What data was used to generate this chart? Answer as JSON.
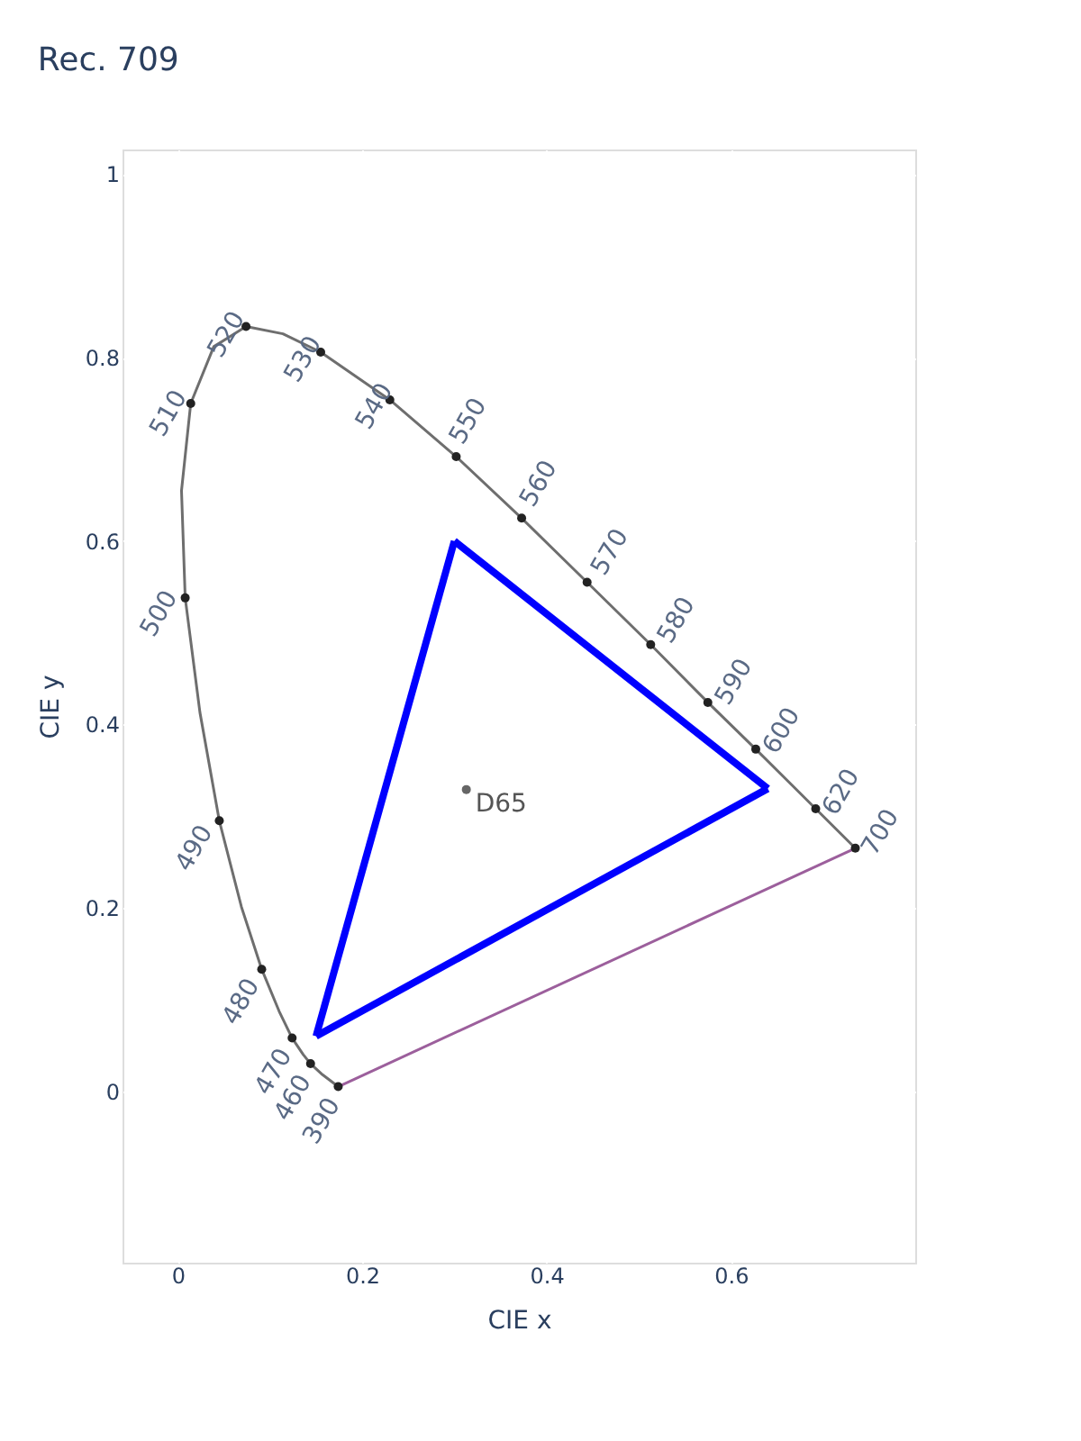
{
  "chart_data": {
    "type": "line",
    "title": "Rec. 709",
    "xlabel": "CIE x",
    "ylabel": "CIE y",
    "xlim": [
      -0.06,
      0.8
    ],
    "ylim": [
      -0.187,
      1.027
    ],
    "xticks": [
      0,
      0.2,
      0.4,
      0.6
    ],
    "yticks": [
      0,
      0.2,
      0.4,
      0.6,
      0.8,
      1
    ],
    "grid": true,
    "series": [
      {
        "color": "#6e6e6e",
        "marker": "none",
        "x": [
          0.174,
          0.157,
          0.144,
          0.136,
          0.124,
          0.11,
          0.091,
          0.069,
          0.045,
          0.024,
          0.008,
          0.004,
          0.014,
          0.039,
          0.074,
          0.114,
          0.155,
          0.23,
          0.302,
          0.373,
          0.444,
          0.513,
          0.575,
          0.627,
          0.666,
          0.692,
          0.719,
          0.735
        ],
        "values": [
          0.005,
          0.018,
          0.03,
          0.04,
          0.058,
          0.087,
          0.133,
          0.201,
          0.295,
          0.413,
          0.538,
          0.655,
          0.75,
          0.812,
          0.834,
          0.826,
          0.806,
          0.754,
          0.692,
          0.625,
          0.555,
          0.487,
          0.424,
          0.373,
          0.334,
          0.308,
          0.281,
          0.265
        ]
      },
      {
        "color": "#9c5f9c",
        "marker": "none",
        "x": [
          0.174,
          0.735
        ],
        "values": [
          0.005,
          0.265
        ]
      },
      {
        "type": "scatter",
        "color": "#222222",
        "marker": "circle",
        "x": [
          0.174,
          0.144,
          0.124,
          0.091,
          0.045,
          0.008,
          0.014,
          0.074,
          0.155,
          0.23,
          0.302,
          0.373,
          0.444,
          0.513,
          0.575,
          0.627,
          0.692,
          0.735
        ],
        "values": [
          0.005,
          0.03,
          0.058,
          0.133,
          0.295,
          0.538,
          0.75,
          0.834,
          0.806,
          0.754,
          0.692,
          0.625,
          0.555,
          0.487,
          0.424,
          0.373,
          0.308,
          0.265
        ]
      },
      {
        "color": "#0000ff",
        "marker": "none",
        "x": [
          0.3,
          0.64
        ],
        "values": [
          0.6,
          0.33
        ]
      },
      {
        "color": "#0000ff",
        "marker": "none",
        "x": [
          0.15,
          0.3
        ],
        "values": [
          0.06,
          0.6
        ]
      },
      {
        "color": "#0000ff",
        "marker": "none",
        "x": [
          0.15,
          0.64
        ],
        "values": [
          0.06,
          0.33
        ]
      },
      {
        "type": "scatter",
        "color": "#666666",
        "marker": "circle",
        "x": [
          0.313
        ],
        "values": [
          0.329
        ]
      }
    ],
    "annotations": [
      {
        "text": "390",
        "x": 0.174,
        "y": 0.005
      },
      {
        "text": "460",
        "x": 0.144,
        "y": 0.03
      },
      {
        "text": "470",
        "x": 0.124,
        "y": 0.058
      },
      {
        "text": "480",
        "x": 0.091,
        "y": 0.133
      },
      {
        "text": "490",
        "x": 0.045,
        "y": 0.295
      },
      {
        "text": "500",
        "x": 0.008,
        "y": 0.538
      },
      {
        "text": "510",
        "x": 0.014,
        "y": 0.75
      },
      {
        "text": "520",
        "x": 0.074,
        "y": 0.834
      },
      {
        "text": "530",
        "x": 0.155,
        "y": 0.806
      },
      {
        "text": "540",
        "x": 0.23,
        "y": 0.754
      },
      {
        "text": "550",
        "x": 0.302,
        "y": 0.692
      },
      {
        "text": "560",
        "x": 0.373,
        "y": 0.625
      },
      {
        "text": "570",
        "x": 0.444,
        "y": 0.555
      },
      {
        "text": "580",
        "x": 0.513,
        "y": 0.487
      },
      {
        "text": "590",
        "x": 0.575,
        "y": 0.424
      },
      {
        "text": "600",
        "x": 0.627,
        "y": 0.373
      },
      {
        "text": "620",
        "x": 0.692,
        "y": 0.308
      },
      {
        "text": "700",
        "x": 0.735,
        "y": 0.265
      },
      {
        "text": "D65",
        "x": 0.313,
        "y": 0.329
      }
    ]
  }
}
